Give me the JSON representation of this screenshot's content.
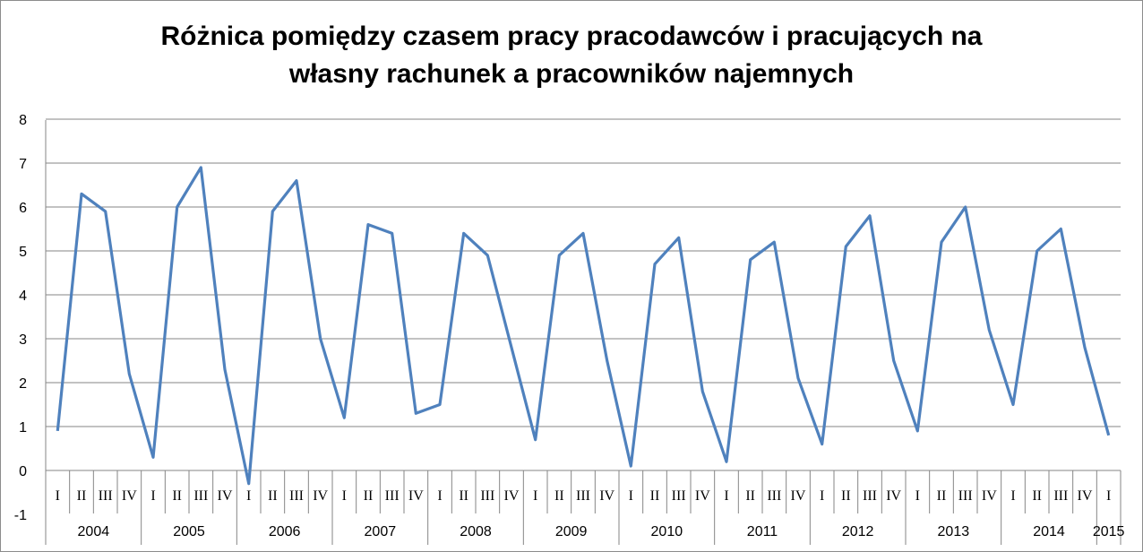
{
  "chart_data": {
    "type": "line",
    "title_line1": "Różnica pomiędzy czasem pracy pracodawców i pracujących na",
    "title_line2": "własny rachunek a pracowników najemnych",
    "xlabel": "",
    "ylabel": "",
    "ylim": [
      -1,
      8
    ],
    "yticks": [
      -1,
      0,
      1,
      2,
      3,
      4,
      5,
      6,
      7,
      8
    ],
    "grid": true,
    "legend": "none",
    "line_color": "#4f81bd",
    "quarter_labels": [
      "I",
      "II",
      "III",
      "IV"
    ],
    "years": [
      "2004",
      "2005",
      "2006",
      "2007",
      "2008",
      "2009",
      "2010",
      "2011",
      "2012",
      "2013",
      "2014",
      "2015"
    ],
    "quarters_in_year": [
      4,
      4,
      4,
      4,
      4,
      4,
      4,
      4,
      4,
      4,
      4,
      1
    ],
    "values": [
      0.9,
      6.3,
      5.9,
      2.2,
      0.3,
      6.0,
      6.9,
      2.3,
      -0.3,
      5.9,
      6.6,
      3.0,
      1.2,
      5.6,
      5.4,
      1.3,
      1.5,
      5.4,
      4.9,
      2.8,
      0.7,
      4.9,
      5.4,
      2.5,
      0.1,
      4.7,
      5.3,
      1.8,
      0.2,
      4.8,
      5.2,
      2.1,
      0.6,
      5.1,
      5.8,
      2.5,
      0.9,
      5.2,
      6.0,
      3.2,
      1.5,
      5.0,
      5.5,
      2.8,
      0.8
    ]
  }
}
